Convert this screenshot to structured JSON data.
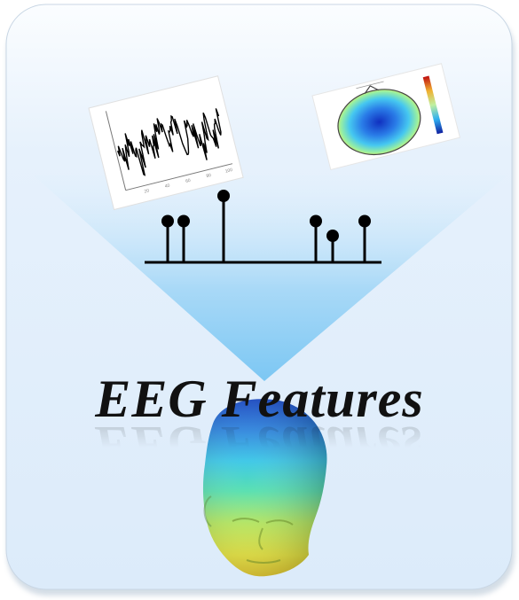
{
  "title": "EEG Features",
  "figure": {
    "panel_color": "#e3f0fc",
    "beam_color": "#8ecdf5",
    "stem_color": "#000000",
    "icons": [
      "eeg-signal-plot",
      "scalp-topography-map",
      "feature-lollipop-plot",
      "head-heatmap"
    ]
  },
  "stems": [
    0.62,
    0.62,
    1.0,
    0.62,
    0.4,
    0.62
  ]
}
